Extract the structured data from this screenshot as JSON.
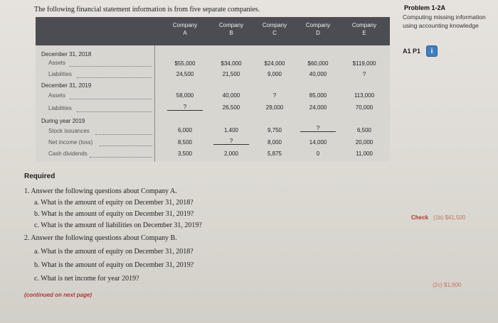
{
  "intro": "The following financial statement information is from five separate companies.",
  "sidebar": {
    "title": "Problem 1-2A",
    "subtitle": "Computing missing information using accounting knowledge",
    "codes": "A1  P1",
    "icon_letter": "i"
  },
  "columns": [
    {
      "line1": "Company",
      "line2": "A"
    },
    {
      "line1": "Company",
      "line2": "B"
    },
    {
      "line1": "Company",
      "line2": "C"
    },
    {
      "line1": "Company",
      "line2": "D"
    },
    {
      "line1": "Company",
      "line2": "E"
    }
  ],
  "rows": {
    "dec2018": "December 31, 2018",
    "assets2018": {
      "label": "Assets",
      "values": [
        "$55,000",
        "$34,000",
        "$24,000",
        "$60,000",
        "$119,000"
      ]
    },
    "liab2018": {
      "label": "Liabilities",
      "values": [
        "24,500",
        "21,500",
        "9,000",
        "40,000",
        "?"
      ]
    },
    "dec2019": "December 31, 2019",
    "assets2019": {
      "label": "Assets",
      "values": [
        "58,000",
        "40,000",
        "?",
        "85,000",
        "113,000"
      ]
    },
    "liab2019": {
      "label": "Liabilities",
      "values": [
        "?",
        "26,500",
        "29,000",
        "24,000",
        "70,000"
      ]
    },
    "during2019": "During year 2019",
    "stock": {
      "label": "Stock issuances",
      "values": [
        "6,000",
        "1,400",
        "9,750",
        "?",
        "6,500"
      ]
    },
    "netincome": {
      "label": "Net income (loss)",
      "values": [
        "8,500",
        "?",
        "8,000",
        "14,000",
        "20,000"
      ]
    },
    "dividends": {
      "label": "Cash dividends",
      "values": [
        "3,500",
        "2,000",
        "5,875",
        "0",
        "11,000"
      ]
    }
  },
  "required": {
    "title": "Required",
    "q1": "1.  Answer the following questions about Company A.",
    "q1a": "a.  What is the amount of equity on December 31, 2018?",
    "q1b": "b.  What is the amount of equity on December 31, 2019?",
    "q1c": "c.  What is the amount of liabilities on December 31, 2019?",
    "q2": "2.  Answer the following questions about Company B.",
    "q2a": "a.  What is the amount of equity on December 31, 2018?",
    "q2b": "b.  What is the amount of equity on December 31, 2019?",
    "q2c": "c.  What is net income for year 2019?",
    "continued": "(continued on next page)"
  },
  "check": {
    "label": "Check",
    "value1": "(1b) $41,500",
    "value2": "(2c) $1,600"
  }
}
